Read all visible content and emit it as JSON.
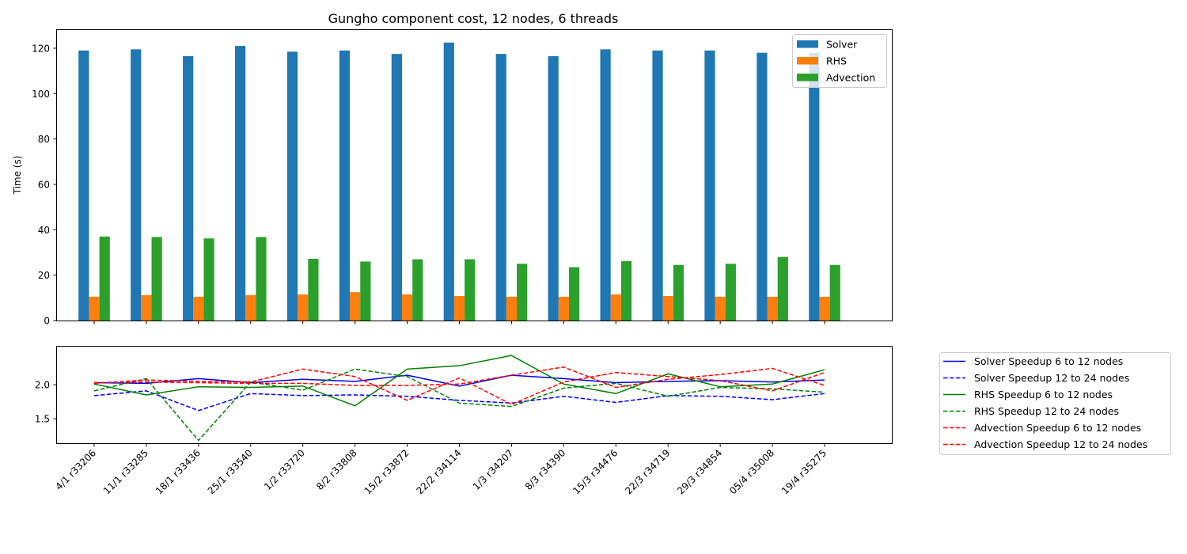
{
  "chart_data": [
    {
      "type": "bar",
      "title": "Gungho component cost, 12 nodes, 6 threads",
      "ylabel": "Time (s)",
      "xlabel": "",
      "ylim": [
        0,
        128
      ],
      "yticks": [
        0,
        20,
        40,
        60,
        80,
        100,
        120
      ],
      "legend_position": "top-right",
      "grid": false,
      "categories": [
        "4/1 r33206",
        "11/1 r33285",
        "18/1 r33436",
        "25/1 r33540",
        "1/2 r33720",
        "8/2 r33808",
        "15/2 r33872",
        "22/2 r34114",
        "1/3 r34207",
        "8/3 r34390",
        "15/3 r34476",
        "22/3 r34719",
        "29/3 r34854",
        "05/4 r35008",
        "19/4 r35275"
      ],
      "series": [
        {
          "name": "Solver",
          "color": "#1f77b4",
          "values": [
            119,
            119.5,
            116.5,
            121,
            118.5,
            119,
            117.5,
            122.5,
            117.5,
            116.5,
            119.5,
            119,
            119,
            118,
            118
          ]
        },
        {
          "name": "RHS",
          "color": "#ff7f0e",
          "values": [
            10.5,
            11.2,
            10.5,
            11.2,
            11.5,
            12.5,
            11.5,
            10.8,
            10.5,
            10.5,
            11.5,
            10.8,
            10.5,
            10.5,
            10.5
          ]
        },
        {
          "name": "Advection",
          "color": "#2ca02c",
          "values": [
            37,
            36.8,
            36.2,
            36.8,
            27.2,
            26,
            27,
            27,
            25,
            23.5,
            26.2,
            24.5,
            25,
            28,
            24.5
          ]
        }
      ]
    },
    {
      "type": "line",
      "title": "",
      "xlabel": "",
      "ylabel": "",
      "ylim": [
        1.14,
        2.56
      ],
      "yticks": [
        1.5,
        2.0
      ],
      "ytick_labels": [
        "1.5",
        "2.0"
      ],
      "legend_position": "outside-right",
      "grid": false,
      "categories": [
        "4/1 r33206",
        "11/1 r33285",
        "18/1 r33436",
        "25/1 r33540",
        "1/2 r33720",
        "8/2 r33808",
        "15/2 r33872",
        "22/2 r34114",
        "1/3 r34207",
        "8/3 r34390",
        "15/3 r34476",
        "22/3 r34719",
        "29/3 r34854",
        "05/4 r35008",
        "19/4 r35275"
      ],
      "series": [
        {
          "name": "Solver Speedup 6 to 12 nodes",
          "color": "#0000ff",
          "style": "solid",
          "values": [
            2.03,
            2.02,
            2.09,
            2.03,
            2.08,
            2.05,
            2.14,
            1.98,
            2.14,
            2.09,
            2.03,
            2.05,
            2.06,
            2.04,
            2.07
          ]
        },
        {
          "name": "Solver Speedup 12 to 24 nodes",
          "color": "#0000ff",
          "style": "dashed",
          "values": [
            1.84,
            1.91,
            1.62,
            1.87,
            1.84,
            1.85,
            1.83,
            1.77,
            1.73,
            1.83,
            1.74,
            1.84,
            1.83,
            1.78,
            1.87
          ]
        },
        {
          "name": "RHS Speedup 6 to 12 nodes",
          "color": "#008000",
          "style": "solid",
          "values": [
            2.01,
            1.85,
            1.97,
            1.96,
            1.98,
            1.69,
            2.23,
            2.28,
            2.43,
            2.01,
            1.87,
            2.16,
            1.97,
            2.01,
            2.22
          ]
        },
        {
          "name": "RHS Speedup 12 to 24 nodes",
          "color": "#008000",
          "style": "dashed",
          "values": [
            1.91,
            2.09,
            1.18,
            2.04,
            1.92,
            2.23,
            2.12,
            1.73,
            1.68,
            1.95,
            2.02,
            1.83,
            1.96,
            1.94,
            1.89
          ]
        },
        {
          "name": "Advection Speedup 6 to 12 nodes",
          "color": "#ff0000",
          "style": "dashed",
          "values": [
            2.02,
            2.07,
            2.05,
            2.04,
            2.23,
            2.12,
            1.77,
            2.1,
            1.71,
            2.04,
            2.18,
            2.12,
            2.06,
            1.91,
            2.18
          ]
        },
        {
          "name": "Advection Speedup 12 to 24 nodes",
          "color": "#ff0000",
          "style": "dashed",
          "values": [
            2.03,
            2.04,
            2.03,
            2.02,
            2.02,
            1.99,
            1.99,
            2.01,
            2.14,
            2.26,
            1.96,
            2.08,
            2.15,
            2.24,
            1.99
          ]
        }
      ]
    }
  ]
}
